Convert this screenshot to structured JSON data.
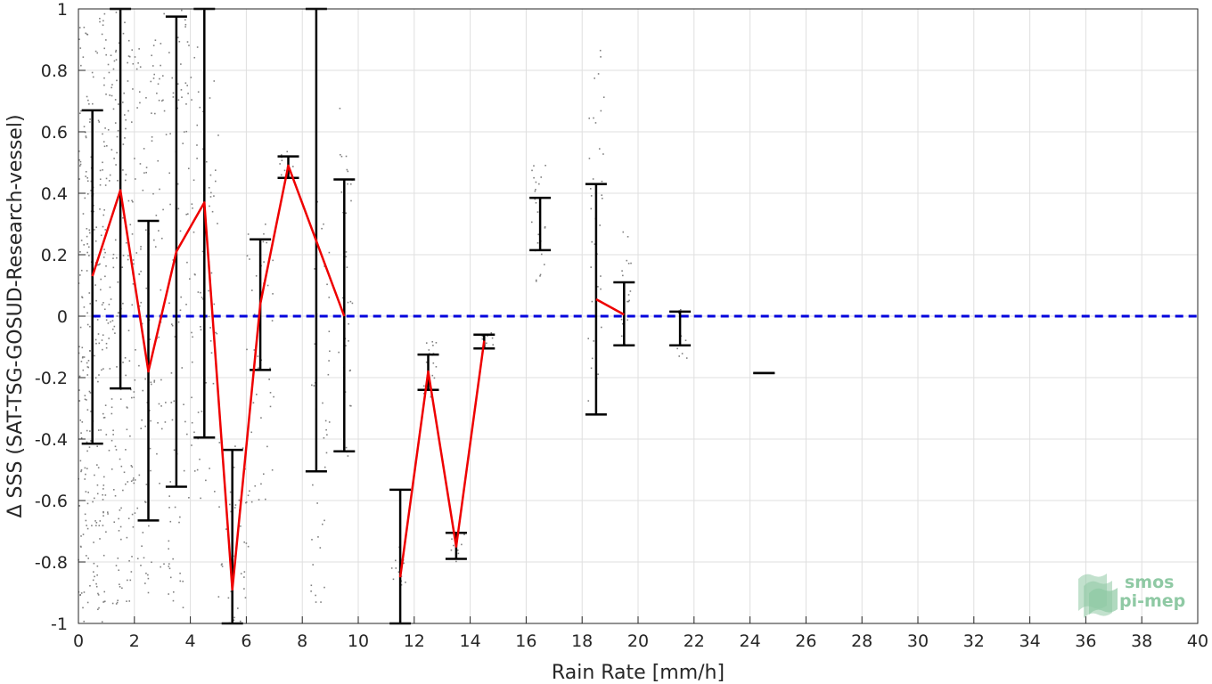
{
  "chart_data": {
    "type": "scatter",
    "xlabel": "Rain Rate [mm/h]",
    "ylabel": "Δ SSS (SAT-TSG-GOSUD-Research-vessel)",
    "xlim": [
      0,
      40
    ],
    "ylim": [
      -1,
      1
    ],
    "x_ticks": [
      0,
      2,
      4,
      6,
      8,
      10,
      12,
      14,
      16,
      18,
      20,
      22,
      24,
      26,
      28,
      30,
      32,
      34,
      36,
      38,
      40
    ],
    "x_tick_labels": [
      "0",
      "2",
      "4",
      "6",
      "8",
      "10",
      "12",
      "14",
      "16",
      "18",
      "20",
      "22",
      "24",
      "26",
      "28",
      "30",
      "32",
      "34",
      "36",
      "38",
      "40"
    ],
    "y_ticks": [
      -1,
      -0.8,
      -0.6,
      -0.4,
      -0.2,
      0,
      0.2,
      0.4,
      0.6,
      0.8,
      1
    ],
    "y_tick_labels": [
      "-1",
      "-0.8",
      "-0.6",
      "-0.4",
      "-0.2",
      "0",
      "0.2",
      "0.4",
      "0.6",
      "0.8",
      "1"
    ],
    "grid": true,
    "zero_line": {
      "y": 0,
      "color": "#0000dd",
      "style": "dashed"
    },
    "mean_line": {
      "color": "#ee0000",
      "segments": [
        [
          [
            0.5,
            0.13
          ],
          [
            1.5,
            0.41
          ],
          [
            2.5,
            -0.18
          ],
          [
            3.5,
            0.21
          ],
          [
            4.5,
            0.37
          ],
          [
            5.5,
            -0.89
          ],
          [
            6.5,
            0.04
          ],
          [
            7.5,
            0.49
          ],
          [
            9.5,
            0.0
          ]
        ],
        [
          [
            11.5,
            -0.85
          ],
          [
            12.5,
            -0.18
          ],
          [
            13.5,
            -0.75
          ],
          [
            14.5,
            -0.08
          ]
        ],
        [
          [
            18.5,
            0.055
          ],
          [
            19.5,
            0.005
          ]
        ]
      ]
    },
    "error_bars": {
      "color": "#000000",
      "bars": [
        {
          "x": 0.5,
          "low": -0.415,
          "high": 0.67
        },
        {
          "x": 1.5,
          "low": -0.235,
          "high": 1.0
        },
        {
          "x": 2.5,
          "low": -0.665,
          "high": 0.31
        },
        {
          "x": 3.5,
          "low": -0.555,
          "high": 0.975
        },
        {
          "x": 4.5,
          "low": -0.395,
          "high": 1.0
        },
        {
          "x": 5.5,
          "low": -1.0,
          "high": -0.435
        },
        {
          "x": 6.5,
          "low": -0.175,
          "high": 0.25
        },
        {
          "x": 7.5,
          "low": 0.45,
          "high": 0.52
        },
        {
          "x": 8.5,
          "low": -0.505,
          "high": 1.0
        },
        {
          "x": 9.5,
          "low": -0.44,
          "high": 0.445
        },
        {
          "x": 11.5,
          "low": -1.0,
          "high": -0.565
        },
        {
          "x": 12.5,
          "low": -0.24,
          "high": -0.125
        },
        {
          "x": 13.5,
          "low": -0.79,
          "high": -0.705
        },
        {
          "x": 14.5,
          "low": -0.105,
          "high": -0.06
        },
        {
          "x": 16.5,
          "low": 0.215,
          "high": 0.385
        },
        {
          "x": 18.5,
          "low": -0.32,
          "high": 0.43
        },
        {
          "x": 19.5,
          "low": -0.095,
          "high": 0.11
        },
        {
          "x": 21.5,
          "low": -0.095,
          "high": 0.015
        },
        {
          "x": 24.5,
          "low": -0.185,
          "high": -0.185
        }
      ]
    },
    "scatter_clusters": {
      "color": "#808080",
      "clusters": [
        {
          "x_min": 0.0,
          "x_max": 1.0,
          "y_min": -1.0,
          "y_max": 1.0,
          "count": 260
        },
        {
          "x_min": 1.0,
          "x_max": 2.0,
          "y_min": -0.95,
          "y_max": 1.0,
          "count": 170
        },
        {
          "x_min": 2.0,
          "x_max": 3.0,
          "y_min": -0.9,
          "y_max": 0.9,
          "count": 110
        },
        {
          "x_min": 3.0,
          "x_max": 4.0,
          "y_min": -0.95,
          "y_max": 1.0,
          "count": 90
        },
        {
          "x_min": 4.0,
          "x_max": 5.0,
          "y_min": -0.6,
          "y_max": 0.9,
          "count": 70
        },
        {
          "x_min": 5.0,
          "x_max": 6.0,
          "y_min": -1.0,
          "y_max": -0.4,
          "count": 40
        },
        {
          "x_min": 6.0,
          "x_max": 7.0,
          "y_min": -0.75,
          "y_max": 0.3,
          "count": 45
        },
        {
          "x_min": 7.2,
          "x_max": 7.7,
          "y_min": 0.44,
          "y_max": 0.55,
          "count": 12
        },
        {
          "x_min": 8.3,
          "x_max": 9.0,
          "y_min": -1.0,
          "y_max": 0.38,
          "count": 40
        },
        {
          "x_min": 9.3,
          "x_max": 9.8,
          "y_min": -0.48,
          "y_max": 0.68,
          "count": 40
        },
        {
          "x_min": 11.2,
          "x_max": 11.7,
          "y_min": -0.9,
          "y_max": -0.75,
          "count": 12
        },
        {
          "x_min": 12.3,
          "x_max": 12.8,
          "y_min": -0.3,
          "y_max": -0.08,
          "count": 20
        },
        {
          "x_min": 13.3,
          "x_max": 13.8,
          "y_min": -0.8,
          "y_max": -0.7,
          "count": 10
        },
        {
          "x_min": 14.4,
          "x_max": 14.9,
          "y_min": -0.1,
          "y_max": -0.05,
          "count": 8
        },
        {
          "x_min": 16.2,
          "x_max": 16.7,
          "y_min": 0.1,
          "y_max": 0.5,
          "count": 25
        },
        {
          "x_min": 18.2,
          "x_max": 18.8,
          "y_min": -0.3,
          "y_max": 0.87,
          "count": 40
        },
        {
          "x_min": 19.4,
          "x_max": 19.8,
          "y_min": -0.1,
          "y_max": 0.28,
          "count": 18
        },
        {
          "x_min": 21.4,
          "x_max": 21.8,
          "y_min": -0.15,
          "y_max": 0.05,
          "count": 12
        }
      ]
    }
  },
  "logo": {
    "line1": "smos",
    "line2": "pi-mep",
    "color": "#8fc9a4"
  }
}
